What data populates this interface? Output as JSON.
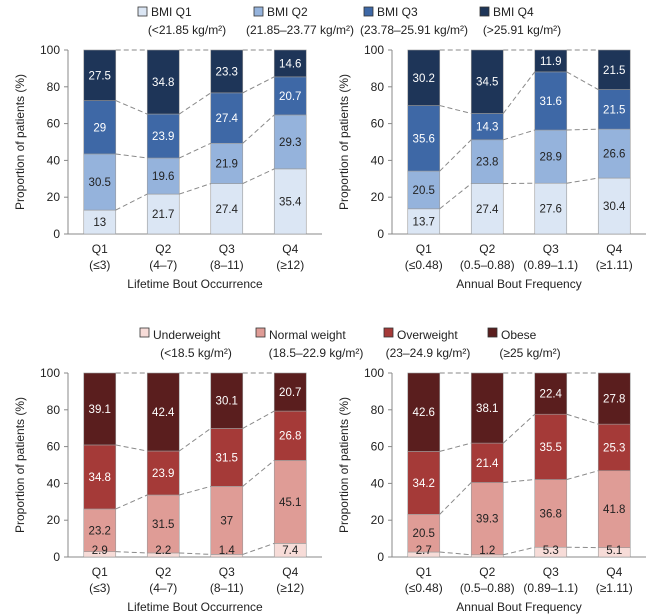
{
  "legends": [
    {
      "entries": [
        {
          "label": "BMI Q1",
          "sub": "(<21.85 kg/m²)",
          "color": "#dbe6f4"
        },
        {
          "label": "BMI Q2",
          "sub": "(21.85–23.77 kg/m²)",
          "color": "#95b3dc"
        },
        {
          "label": "BMI Q3",
          "sub": "(23.78–25.91 kg/m²)",
          "color": "#3e68a6"
        },
        {
          "label": "BMI Q4",
          "sub": "(>25.91 kg/m²)",
          "color": "#1e3558"
        }
      ]
    },
    {
      "entries": [
        {
          "label": "Underweight",
          "sub": "(<18.5 kg/m²)",
          "color": "#f7dcd8"
        },
        {
          "label": "Normal weight",
          "sub": "(18.5–22.9 kg/m²)",
          "color": "#df9c96"
        },
        {
          "label": "Overweight",
          "sub": "(23–24.9 kg/m²)",
          "color": "#a53a38"
        },
        {
          "label": "Obese",
          "sub": "(≥25 kg/m²)",
          "color": "#5a1e1e"
        }
      ]
    }
  ],
  "chart_data": [
    {
      "type": "bar",
      "stacked": true,
      "panel": "top-left",
      "xlabel": "Lifetime Bout Occurrence",
      "ylabel": "Proportion of patients (%)",
      "ylim": [
        0,
        100
      ],
      "yticks": [
        0,
        20,
        40,
        60,
        80,
        100
      ],
      "categories": [
        {
          "top": "Q1",
          "bottom": "(≤3)"
        },
        {
          "top": "Q2",
          "bottom": "(4–7)"
        },
        {
          "top": "Q3",
          "bottom": "(8–11)"
        },
        {
          "top": "Q4",
          "bottom": "(≥12)"
        }
      ],
      "series": [
        {
          "name": "BMI Q1",
          "color": "#dbe6f4",
          "text_color": "#222222",
          "values": [
            13,
            21.7,
            27.4,
            35.4
          ],
          "labels": [
            "13",
            "21.7",
            "27.4",
            "35.4"
          ]
        },
        {
          "name": "BMI Q2",
          "color": "#95b3dc",
          "text_color": "#222222",
          "values": [
            30.5,
            19.6,
            21.9,
            29.3
          ],
          "labels": [
            "30.5",
            "19.6",
            "21.9",
            "29.3"
          ]
        },
        {
          "name": "BMI Q3",
          "color": "#3e68a6",
          "text_color": "#ffffff",
          "values": [
            29,
            23.9,
            27.4,
            20.7
          ],
          "labels": [
            "29",
            "23.9",
            "27.4",
            "20.7"
          ]
        },
        {
          "name": "BMI Q4",
          "color": "#1e3558",
          "text_color": "#ffffff",
          "values": [
            27.5,
            34.8,
            23.3,
            14.6
          ],
          "labels": [
            "27.5",
            "34.8",
            "23.3",
            "14.6"
          ]
        }
      ]
    },
    {
      "type": "bar",
      "stacked": true,
      "panel": "top-right",
      "xlabel": "Annual Bout Frequency",
      "ylabel": "Proportion of patients (%)",
      "ylim": [
        0,
        100
      ],
      "yticks": [
        0,
        20,
        40,
        60,
        80,
        100
      ],
      "categories": [
        {
          "top": "Q1",
          "bottom": "(≤0.48)"
        },
        {
          "top": "Q2",
          "bottom": "(0.5–0.88)"
        },
        {
          "top": "Q3",
          "bottom": "(0.89–1.1)"
        },
        {
          "top": "Q4",
          "bottom": "(≥1.11)"
        }
      ],
      "series": [
        {
          "name": "BMI Q1",
          "color": "#dbe6f4",
          "text_color": "#222222",
          "values": [
            13.7,
            27.4,
            27.6,
            30.4
          ],
          "labels": [
            "13.7",
            "27.4",
            "27.6",
            "30.4"
          ]
        },
        {
          "name": "BMI Q2",
          "color": "#95b3dc",
          "text_color": "#222222",
          "values": [
            20.5,
            23.8,
            28.9,
            26.6
          ],
          "labels": [
            "20.5",
            "23.8",
            "28.9",
            "26.6"
          ]
        },
        {
          "name": "BMI Q3",
          "color": "#3e68a6",
          "text_color": "#ffffff",
          "values": [
            35.6,
            14.3,
            31.6,
            21.5
          ],
          "labels": [
            "35.6",
            "14.3",
            "31.6",
            "21.5"
          ]
        },
        {
          "name": "BMI Q4",
          "color": "#1e3558",
          "text_color": "#ffffff",
          "values": [
            30.2,
            34.5,
            11.9,
            21.5
          ],
          "labels": [
            "30.2",
            "34.5",
            "11.9",
            "21.5"
          ]
        }
      ]
    },
    {
      "type": "bar",
      "stacked": true,
      "panel": "bottom-left",
      "xlabel": "Lifetime Bout Occurrence",
      "ylabel": "Proportion of patients (%)",
      "ylim": [
        0,
        100
      ],
      "yticks": [
        0,
        20,
        40,
        60,
        80,
        100
      ],
      "categories": [
        {
          "top": "Q1",
          "bottom": "(≤3)"
        },
        {
          "top": "Q2",
          "bottom": "(4–7)"
        },
        {
          "top": "Q3",
          "bottom": "(8–11)"
        },
        {
          "top": "Q4",
          "bottom": "(≥12)"
        }
      ],
      "series": [
        {
          "name": "Underweight",
          "color": "#f7dcd8",
          "text_color": "#222222",
          "values": [
            2.9,
            2.2,
            1.4,
            7.4
          ],
          "labels": [
            "2.9",
            "2.2",
            "1.4",
            "7.4"
          ]
        },
        {
          "name": "Normal weight",
          "color": "#df9c96",
          "text_color": "#222222",
          "values": [
            23.2,
            31.5,
            37,
            45.1
          ],
          "labels": [
            "23.2",
            "31.5",
            "37",
            "45.1"
          ]
        },
        {
          "name": "Overweight",
          "color": "#a53a38",
          "text_color": "#ffffff",
          "values": [
            34.8,
            23.9,
            31.5,
            26.8
          ],
          "labels": [
            "34.8",
            "23.9",
            "31.5",
            "26.8"
          ]
        },
        {
          "name": "Obese",
          "color": "#5a1e1e",
          "text_color": "#ffffff",
          "values": [
            39.1,
            42.4,
            30.1,
            20.7
          ],
          "labels": [
            "39.1",
            "42.4",
            "30.1",
            "20.7"
          ]
        }
      ]
    },
    {
      "type": "bar",
      "stacked": true,
      "panel": "bottom-right",
      "xlabel": "Annual Bout Frequency",
      "ylabel": "Proportion of patients (%)",
      "ylim": [
        0,
        100
      ],
      "yticks": [
        0,
        20,
        40,
        60,
        80,
        100
      ],
      "categories": [
        {
          "top": "Q1",
          "bottom": "(≤0.48)"
        },
        {
          "top": "Q2",
          "bottom": "(0.5–0.88)"
        },
        {
          "top": "Q3",
          "bottom": "(0.89–1.1)"
        },
        {
          "top": "Q4",
          "bottom": "(≥1.11)"
        }
      ],
      "series": [
        {
          "name": "Underweight",
          "color": "#f7dcd8",
          "text_color": "#222222",
          "values": [
            2.7,
            1.2,
            5.3,
            5.1
          ],
          "labels": [
            "2.7",
            "1.2",
            "5.3",
            "5.1"
          ]
        },
        {
          "name": "Normal weight",
          "color": "#df9c96",
          "text_color": "#222222",
          "values": [
            20.5,
            39.3,
            36.8,
            41.8
          ],
          "labels": [
            "20.5",
            "39.3",
            "36.8",
            "41.8"
          ]
        },
        {
          "name": "Overweight",
          "color": "#a53a38",
          "text_color": "#ffffff",
          "values": [
            34.2,
            21.4,
            35.5,
            25.3
          ],
          "labels": [
            "34.2",
            "21.4",
            "35.5",
            "25.3"
          ]
        },
        {
          "name": "Obese",
          "color": "#5a1e1e",
          "text_color": "#ffffff",
          "values": [
            42.6,
            38.1,
            22.4,
            27.8
          ],
          "labels": [
            "42.6",
            "38.1",
            "22.4",
            "27.8"
          ]
        }
      ]
    }
  ]
}
